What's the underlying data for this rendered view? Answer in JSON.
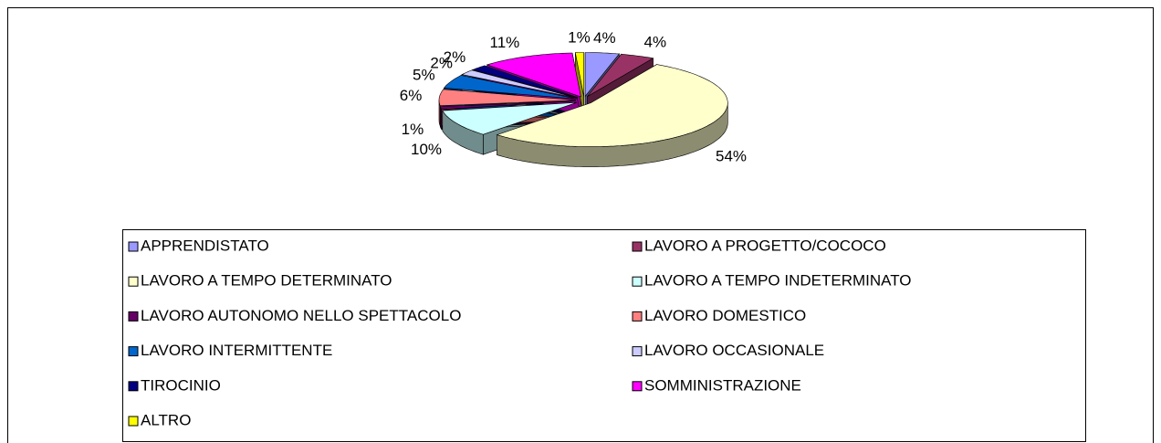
{
  "chart_data": {
    "type": "pie",
    "categories": [
      "APPRENDISTATO",
      "LAVORO A PROGETTO/COCOCO",
      "LAVORO A TEMPO DETERMINATO",
      "LAVORO A TEMPO INDETERMINATO",
      "LAVORO AUTONOMO NELLO SPETTACOLO",
      "LAVORO DOMESTICO",
      "LAVORO INTERMITTENTE",
      "LAVORO OCCASIONALE",
      "TIROCINIO",
      "SOMMINISTRAZIONE",
      "ALTRO"
    ],
    "values": [
      4,
      4,
      54,
      10,
      1,
      6,
      5,
      2,
      2,
      11,
      1
    ],
    "value_labels": [
      "4%",
      "4%",
      "54%",
      "10%",
      "1%",
      "6%",
      "5%",
      "2%",
      "2%",
      "11%",
      "1%"
    ],
    "colors": [
      "#9999ff",
      "#993366",
      "#ffffcc",
      "#ccffff",
      "#660066",
      "#ff8080",
      "#0066cc",
      "#ccccff",
      "#000080",
      "#ff00ff",
      "#ffff00"
    ],
    "legend": "bottom"
  }
}
